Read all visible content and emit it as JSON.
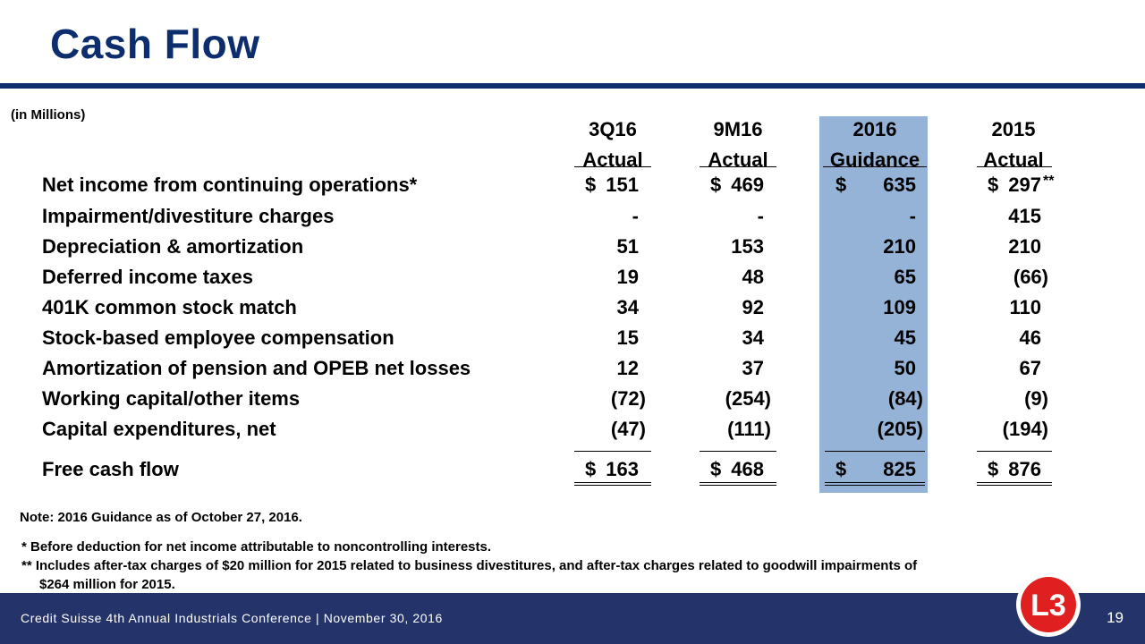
{
  "title": "Cash Flow",
  "units": "(in Millions)",
  "columns": [
    {
      "line1": "3Q16",
      "line2": "Actual"
    },
    {
      "line1": "9M16",
      "line2": "Actual"
    },
    {
      "line1": "2016",
      "line2": "Guidance"
    },
    {
      "line1": "2015",
      "line2": "Actual"
    }
  ],
  "rows": [
    {
      "label": "Net income from continuing operations*",
      "values": [
        "151",
        "469",
        "635",
        "297"
      ],
      "dollar": [
        "$",
        "$",
        "$",
        "$"
      ],
      "note": "**"
    },
    {
      "label": "Impairment/divestiture charges",
      "values": [
        "-",
        "-",
        "-",
        "415"
      ]
    },
    {
      "label": "Depreciation & amortization",
      "values": [
        "51",
        "153",
        "210",
        "210"
      ]
    },
    {
      "label": "Deferred income taxes",
      "values": [
        "19",
        "48",
        "65",
        "(66)"
      ]
    },
    {
      "label": "401K common stock match",
      "values": [
        "34",
        "92",
        "109",
        "110"
      ]
    },
    {
      "label": "Stock-based employee compensation",
      "values": [
        "15",
        "34",
        "45",
        "46"
      ]
    },
    {
      "label": "Amortization of pension and OPEB net losses",
      "values": [
        "12",
        "37",
        "50",
        "67"
      ]
    },
    {
      "label": "Working capital/other items",
      "values": [
        "(72)",
        "(254)",
        "(84)",
        "(9)"
      ]
    },
    {
      "label": "Capital expenditures, net",
      "values": [
        "(47)",
        "(111)",
        "(205)",
        "(194)"
      ]
    }
  ],
  "total": {
    "label": "Free cash flow",
    "values": [
      "163",
      "468",
      "825",
      "876"
    ],
    "dollar": [
      "$",
      "$",
      "$",
      "$"
    ]
  },
  "notes": {
    "guidance_date": "Note:  2016 Guidance as of October 27, 2016.",
    "footnote1": "*  Before deduction for net income attributable to noncontrolling interests.",
    "footnote2_line1": "** Includes after-tax charges of $20 million for 2015 related to business divestitures, and after-tax charges related to goodwill impairments of",
    "footnote2_line2": "$264 million for 2015."
  },
  "footer": {
    "event": "Credit Suisse 4th Annual Industrials Conference  |  November 30, 2016",
    "page_number": "19"
  },
  "logo": {
    "text": "L3"
  },
  "colors": {
    "title": "#0c2d6e",
    "footer_bg": "#24346b",
    "guidance_highlight": "#95b3d7",
    "logo_red": "#e02020"
  }
}
